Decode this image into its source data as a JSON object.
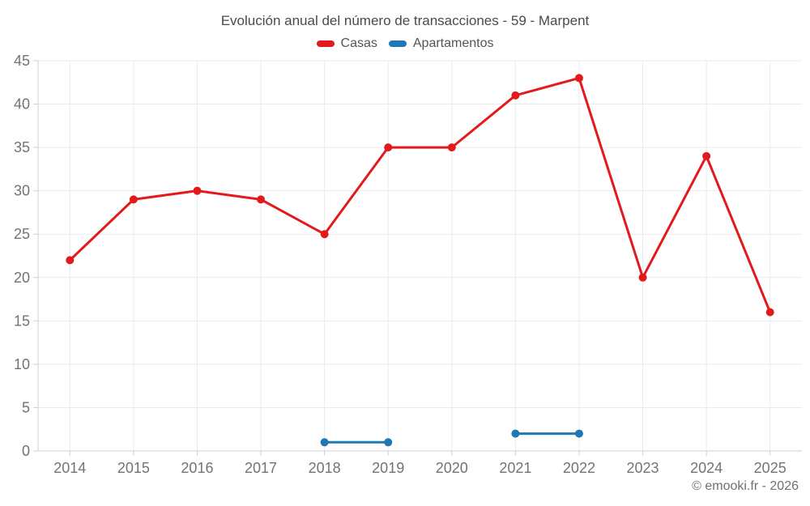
{
  "header": {
    "title": "Evolución anual del número de transacciones - 59 - Marpent"
  },
  "legend": {
    "items": [
      {
        "label": "Casas",
        "color": "#e31a1c"
      },
      {
        "label": "Apartamentos",
        "color": "#1f78b4"
      }
    ]
  },
  "footer": {
    "credit": "© emooki.fr - 2026"
  },
  "chart_data": {
    "type": "line",
    "title": "Evolución anual del número de transacciones - 59 - Marpent",
    "categories": [
      "2014",
      "2015",
      "2016",
      "2017",
      "2018",
      "2019",
      "2020",
      "2021",
      "2022",
      "2023",
      "2024",
      "2025"
    ],
    "series": [
      {
        "name": "Casas",
        "color": "#e31a1c",
        "values": [
          22,
          29,
          30,
          29,
          25,
          35,
          35,
          41,
          43,
          20,
          34,
          16
        ]
      },
      {
        "name": "Apartamentos",
        "color": "#1f78b4",
        "values": [
          null,
          null,
          null,
          null,
          1,
          1,
          null,
          2,
          2,
          null,
          null,
          null
        ]
      }
    ],
    "xlabel": "",
    "ylabel": "",
    "ylim": [
      0,
      45
    ],
    "y_ticks": [
      0,
      5,
      10,
      15,
      20,
      25,
      30,
      35,
      40,
      45
    ],
    "grid": true,
    "legend_position": "top",
    "colors": {
      "gridline": "#ebebeb",
      "axis_line": "#cfcfcf",
      "tick_label": "#737373"
    }
  }
}
